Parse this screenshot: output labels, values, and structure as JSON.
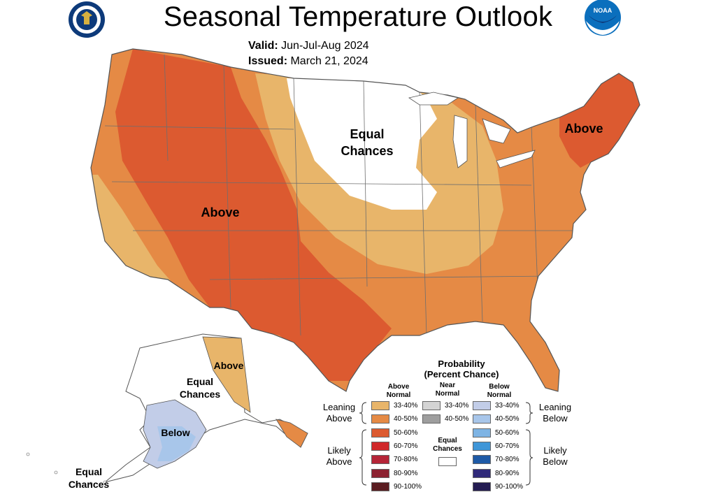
{
  "header": {
    "title": "Seasonal Temperature Outlook",
    "valid_label": "Valid:",
    "valid_value": "Jun-Jul-Aug 2024",
    "issued_label": "Issued:",
    "issued_value": "March 21, 2024"
  },
  "logos": {
    "left": "doc-seal-icon",
    "right": "noaa-logo-icon",
    "noaa_text": "NOAA"
  },
  "map_labels": {
    "above_west": "Above",
    "equal_chances_north": [
      "Equal",
      "Chances"
    ],
    "above_northeast": "Above",
    "alaska_above": "Above",
    "alaska_equal": [
      "Equal",
      "Chances"
    ],
    "alaska_below": "Below",
    "aleutian_equal": [
      "Equal",
      "Chances"
    ]
  },
  "legend": {
    "title_line1": "Probability",
    "title_line2": "(Percent Chance)",
    "above_header": [
      "Above",
      "Normal"
    ],
    "near_header": [
      "Near",
      "Normal"
    ],
    "below_header": [
      "Below",
      "Normal"
    ],
    "above_items": [
      "33-40%",
      "40-50%",
      "50-60%",
      "60-70%",
      "70-80%",
      "80-90%",
      "90-100%"
    ],
    "above_colors": [
      "#e8b56a",
      "#e58a45",
      "#dc5a30",
      "#d0282a",
      "#b52538",
      "#8c2231",
      "#5a1c20"
    ],
    "near_items": [
      "33-40%",
      "40-50%"
    ],
    "near_colors": [
      "#d4d4d4",
      "#9e9e9e"
    ],
    "equal_label": [
      "Equal",
      "Chances"
    ],
    "below_items": [
      "33-40%",
      "40-50%",
      "50-60%",
      "60-70%",
      "70-80%",
      "80-90%",
      "90-100%"
    ],
    "below_colors": [
      "#c2cde8",
      "#a8c6ea",
      "#7eb4e4",
      "#3f96d8",
      "#1e5aa6",
      "#302a7a",
      "#241c52"
    ],
    "leaning_above": [
      "Leaning",
      "Above"
    ],
    "likely_above": [
      "Likely",
      "Above"
    ],
    "leaning_below": [
      "Leaning",
      "Below"
    ],
    "likely_below": [
      "Likely",
      "Below"
    ]
  },
  "colors": {
    "above_50_60": "#dc5a30",
    "above_40_50": "#e58a45",
    "above_33_40": "#e8b56a",
    "below_33_40": "#c2cde8",
    "below_40_50": "#a8c6ea",
    "equal": "#ffffff",
    "borders": "#6e6e6e"
  }
}
